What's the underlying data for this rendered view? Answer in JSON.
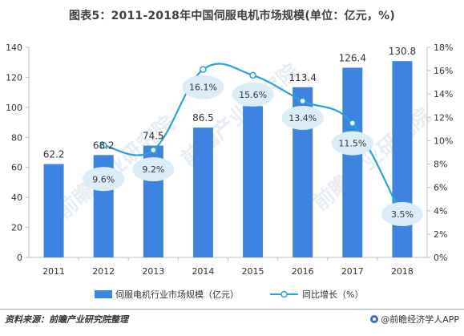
{
  "title": "图表5：2011-2018年中国伺服电机市场规模(单位：亿元，%)",
  "source": "资料来源：前瞻产业研究院整理",
  "brand": "@前瞻经济学人APP",
  "watermark": "前瞻产业研究院",
  "colors": {
    "bar": "#3c84e0",
    "line": "#2aa3d6",
    "bubble": "#dcedf7",
    "marker_fill": "#ffffff"
  },
  "chart_data": {
    "type": "bar",
    "categories": [
      "2011",
      "2012",
      "2013",
      "2014",
      "2015",
      "2016",
      "2017",
      "2018"
    ],
    "series": [
      {
        "name": "伺服电机行业市场规模（亿元）",
        "type": "bar",
        "axis": "left",
        "values": [
          62.2,
          68.2,
          74.5,
          86.5,
          100.8,
          113.4,
          126.4,
          130.8
        ],
        "labels": [
          "62.2",
          "68.2",
          "74.5",
          "86.5",
          "",
          "113.4",
          "126.4",
          "130.8"
        ]
      },
      {
        "name": "同比增长（%）",
        "type": "line",
        "axis": "right",
        "values": [
          null,
          9.6,
          9.2,
          16.1,
          15.6,
          13.4,
          11.5,
          3.5
        ],
        "labels": [
          "",
          "9.6%",
          "9.2%",
          "16.1%",
          "15.6%",
          "13.4%",
          "11.5%",
          "3.5%"
        ]
      }
    ],
    "ylim_left": [
      0,
      140
    ],
    "yticks_left": [
      "0",
      "20",
      "40",
      "60",
      "80",
      "100",
      "120",
      "140"
    ],
    "ylim_right": [
      0,
      18
    ],
    "yticks_right": [
      "0%",
      "2%",
      "4%",
      "6%",
      "8%",
      "10%",
      "12%",
      "14%",
      "16%",
      "18%"
    ],
    "legend_position": "bottom"
  }
}
